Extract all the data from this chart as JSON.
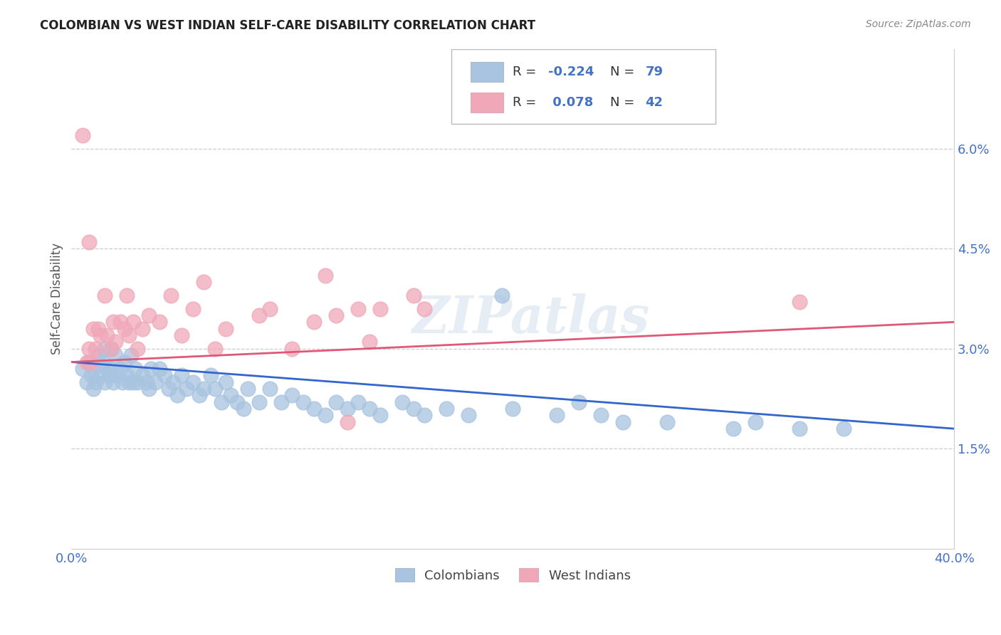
{
  "title": "COLOMBIAN VS WEST INDIAN SELF-CARE DISABILITY CORRELATION CHART",
  "source": "Source: ZipAtlas.com",
  "ylabel": "Self-Care Disability",
  "xlim": [
    0.0,
    0.4
  ],
  "ylim": [
    0.0,
    0.075
  ],
  "ytick_vals_right": [
    0.015,
    0.03,
    0.045,
    0.06
  ],
  "ytick_labels_right": [
    "1.5%",
    "3.0%",
    "4.5%",
    "6.0%"
  ],
  "blue_color": "#A8C4E0",
  "pink_color": "#F0A8B8",
  "trendline_blue_color": "#3366CC",
  "trendline_pink_color": "#E05878",
  "watermark_text": "ZIPatlas",
  "bottom_legend_colombians": "Colombians",
  "bottom_legend_west_indians": "West Indians",
  "blue_x": [
    0.005,
    0.007,
    0.008,
    0.009,
    0.01,
    0.01,
    0.011,
    0.012,
    0.013,
    0.014,
    0.015,
    0.015,
    0.016,
    0.017,
    0.018,
    0.018,
    0.019,
    0.02,
    0.02,
    0.022,
    0.023,
    0.024,
    0.025,
    0.026,
    0.027,
    0.028,
    0.029,
    0.03,
    0.032,
    0.034,
    0.035,
    0.036,
    0.038,
    0.04,
    0.042,
    0.044,
    0.046,
    0.048,
    0.05,
    0.052,
    0.055,
    0.058,
    0.06,
    0.063,
    0.065,
    0.068,
    0.07,
    0.072,
    0.075,
    0.078,
    0.08,
    0.085,
    0.09,
    0.095,
    0.1,
    0.105,
    0.11,
    0.115,
    0.12,
    0.125,
    0.13,
    0.135,
    0.14,
    0.15,
    0.155,
    0.16,
    0.17,
    0.18,
    0.2,
    0.22,
    0.23,
    0.24,
    0.25,
    0.27,
    0.3,
    0.31,
    0.33,
    0.35,
    0.195
  ],
  "blue_y": [
    0.027,
    0.025,
    0.028,
    0.026,
    0.024,
    0.027,
    0.025,
    0.029,
    0.026,
    0.028,
    0.03,
    0.025,
    0.027,
    0.026,
    0.03,
    0.027,
    0.025,
    0.029,
    0.026,
    0.027,
    0.025,
    0.028,
    0.026,
    0.025,
    0.029,
    0.025,
    0.027,
    0.025,
    0.026,
    0.025,
    0.024,
    0.027,
    0.025,
    0.027,
    0.026,
    0.024,
    0.025,
    0.023,
    0.026,
    0.024,
    0.025,
    0.023,
    0.024,
    0.026,
    0.024,
    0.022,
    0.025,
    0.023,
    0.022,
    0.021,
    0.024,
    0.022,
    0.024,
    0.022,
    0.023,
    0.022,
    0.021,
    0.02,
    0.022,
    0.021,
    0.022,
    0.021,
    0.02,
    0.022,
    0.021,
    0.02,
    0.021,
    0.02,
    0.021,
    0.02,
    0.022,
    0.02,
    0.019,
    0.019,
    0.018,
    0.019,
    0.018,
    0.018,
    0.038
  ],
  "pink_x": [
    0.005,
    0.007,
    0.008,
    0.009,
    0.01,
    0.011,
    0.012,
    0.013,
    0.015,
    0.016,
    0.018,
    0.019,
    0.02,
    0.022,
    0.024,
    0.025,
    0.026,
    0.028,
    0.03,
    0.032,
    0.035,
    0.04,
    0.045,
    0.05,
    0.055,
    0.06,
    0.065,
    0.07,
    0.085,
    0.09,
    0.1,
    0.11,
    0.115,
    0.12,
    0.125,
    0.13,
    0.135,
    0.14,
    0.155,
    0.16,
    0.33,
    0.008
  ],
  "pink_y": [
    0.062,
    0.028,
    0.03,
    0.028,
    0.033,
    0.03,
    0.033,
    0.032,
    0.038,
    0.032,
    0.03,
    0.034,
    0.031,
    0.034,
    0.033,
    0.038,
    0.032,
    0.034,
    0.03,
    0.033,
    0.035,
    0.034,
    0.038,
    0.032,
    0.036,
    0.04,
    0.03,
    0.033,
    0.035,
    0.036,
    0.03,
    0.034,
    0.041,
    0.035,
    0.019,
    0.036,
    0.031,
    0.036,
    0.038,
    0.036,
    0.037,
    0.046
  ]
}
